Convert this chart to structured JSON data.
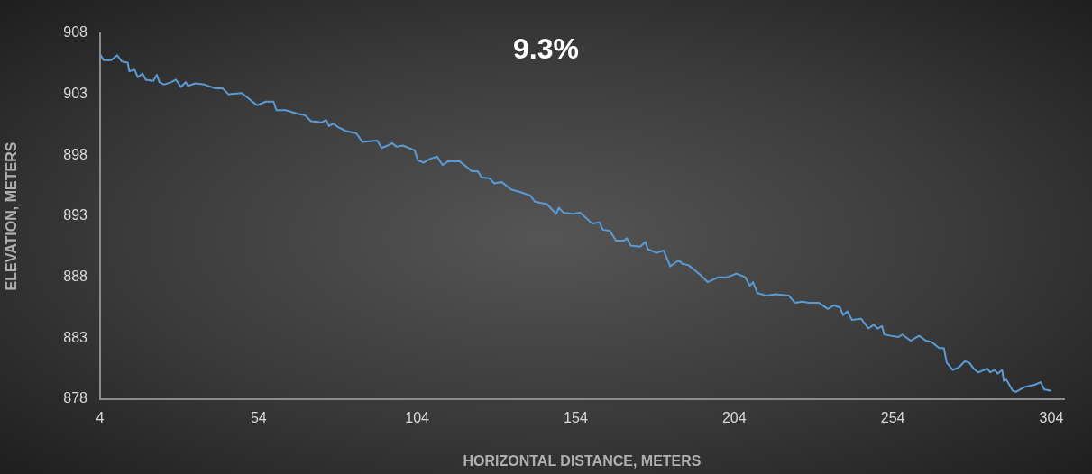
{
  "chart_data": {
    "type": "line",
    "title": "9.3%",
    "xlabel": "HORIZONTAL DISTANCE, METERS",
    "ylabel": "ELEVATION, METERS",
    "xlim": [
      4,
      308
    ],
    "xticks": [
      4,
      54,
      104,
      154,
      204,
      254,
      304
    ],
    "ylim": [
      878,
      908
    ],
    "yticks": [
      878,
      883,
      888,
      893,
      898,
      903,
      908
    ],
    "grid": false,
    "legend": false,
    "marker": "none",
    "line_style": "solid",
    "series": [
      {
        "color": "#5b9bd5",
        "x": [
          4.2,
          5.1,
          7.5,
          9.4,
          10.8,
          12.7,
          13.2,
          14.9,
          15.9,
          17.4,
          18.4,
          20.8,
          21.9,
          22.7,
          24.1,
          26.5,
          27.9,
          29.5,
          31.0,
          31.7,
          34.1,
          36.9,
          40.2,
          42.6,
          44.5,
          48.7,
          51.1,
          53.5,
          56.3,
          58.7,
          59.6,
          62.5,
          66.3,
          68.6,
          70.5,
          73.9,
          75.3,
          76.2,
          77.6,
          79.1,
          81.4,
          84.8,
          86.7,
          91.4,
          92.8,
          94.7,
          96.1,
          97.5,
          99.5,
          103.2,
          104.2,
          106.1,
          108.0,
          110.3,
          112.0,
          113.7,
          117.4,
          118.9,
          121.2,
          123.1,
          124.3,
          126.9,
          128.3,
          130.7,
          133.6,
          136.4,
          139.7,
          141.1,
          144.9,
          147.8,
          148.7,
          150.1,
          153.0,
          155.4,
          159.2,
          161.5,
          162.5,
          164.8,
          166.7,
          169.1,
          170.2,
          171.3,
          174.3,
          176.0,
          176.7,
          179.5,
          181.7,
          183.8,
          186.5,
          187.6,
          189.5,
          193.3,
          195.6,
          199.0,
          201.8,
          204.7,
          207.5,
          208.9,
          209.9,
          211.3,
          214.1,
          217.0,
          221.2,
          223.1,
          225.5,
          227.4,
          230.7,
          233.5,
          235.4,
          237.4,
          238.3,
          239.7,
          241.1,
          244.0,
          246.3,
          248.0,
          249.2,
          250.6,
          251.3,
          253.4,
          255.8,
          257.0,
          259.6,
          262.3,
          264.4,
          266.2,
          268.6,
          270.1,
          271.0,
          272.9,
          274.8,
          276.7,
          278.1,
          279.5,
          280.9,
          283.8,
          284.7,
          286.1,
          287.1,
          288.5,
          289.0,
          289.8,
          291.8,
          292.8,
          295.6,
          298.9,
          300.6,
          301.8,
          303.7
        ],
        "values": [
          906.2,
          905.8,
          905.8,
          906.2,
          905.7,
          905.6,
          904.9,
          905.0,
          904.4,
          904.7,
          904.2,
          904.1,
          904.6,
          904.0,
          903.8,
          904.0,
          904.2,
          903.6,
          904.0,
          903.7,
          903.9,
          903.8,
          903.5,
          903.5,
          903.0,
          903.1,
          902.6,
          902.1,
          902.4,
          902.4,
          901.7,
          901.7,
          901.4,
          901.3,
          900.8,
          900.7,
          900.9,
          900.4,
          900.6,
          900.3,
          900.0,
          899.8,
          899.1,
          899.2,
          898.6,
          898.8,
          899.0,
          898.7,
          898.8,
          898.4,
          897.6,
          897.4,
          897.7,
          897.9,
          897.2,
          897.5,
          897.5,
          897.2,
          896.7,
          896.7,
          896.2,
          896.1,
          895.7,
          895.8,
          895.2,
          895.0,
          894.7,
          894.2,
          894.0,
          893.2,
          893.7,
          893.3,
          893.2,
          893.3,
          892.4,
          892.5,
          891.9,
          891.8,
          891.0,
          891.0,
          891.2,
          890.6,
          890.5,
          890.9,
          890.3,
          890.0,
          890.2,
          888.9,
          889.4,
          889.1,
          889.0,
          888.2,
          887.6,
          888.0,
          888.0,
          888.3,
          888.0,
          887.3,
          887.6,
          886.7,
          886.5,
          886.6,
          886.5,
          885.9,
          886.0,
          885.9,
          885.9,
          885.4,
          885.7,
          885.5,
          884.9,
          885.2,
          884.5,
          884.6,
          883.8,
          884.1,
          883.8,
          884.0,
          883.3,
          883.2,
          883.1,
          883.3,
          882.8,
          883.2,
          882.8,
          882.7,
          882.2,
          882.2,
          881.0,
          880.4,
          880.6,
          881.1,
          881.0,
          880.5,
          880.2,
          880.5,
          880.2,
          880.4,
          880.1,
          880.4,
          879.5,
          879.6,
          878.7,
          878.6,
          879.0,
          879.2,
          879.4,
          878.8,
          878.7
        ]
      }
    ]
  }
}
